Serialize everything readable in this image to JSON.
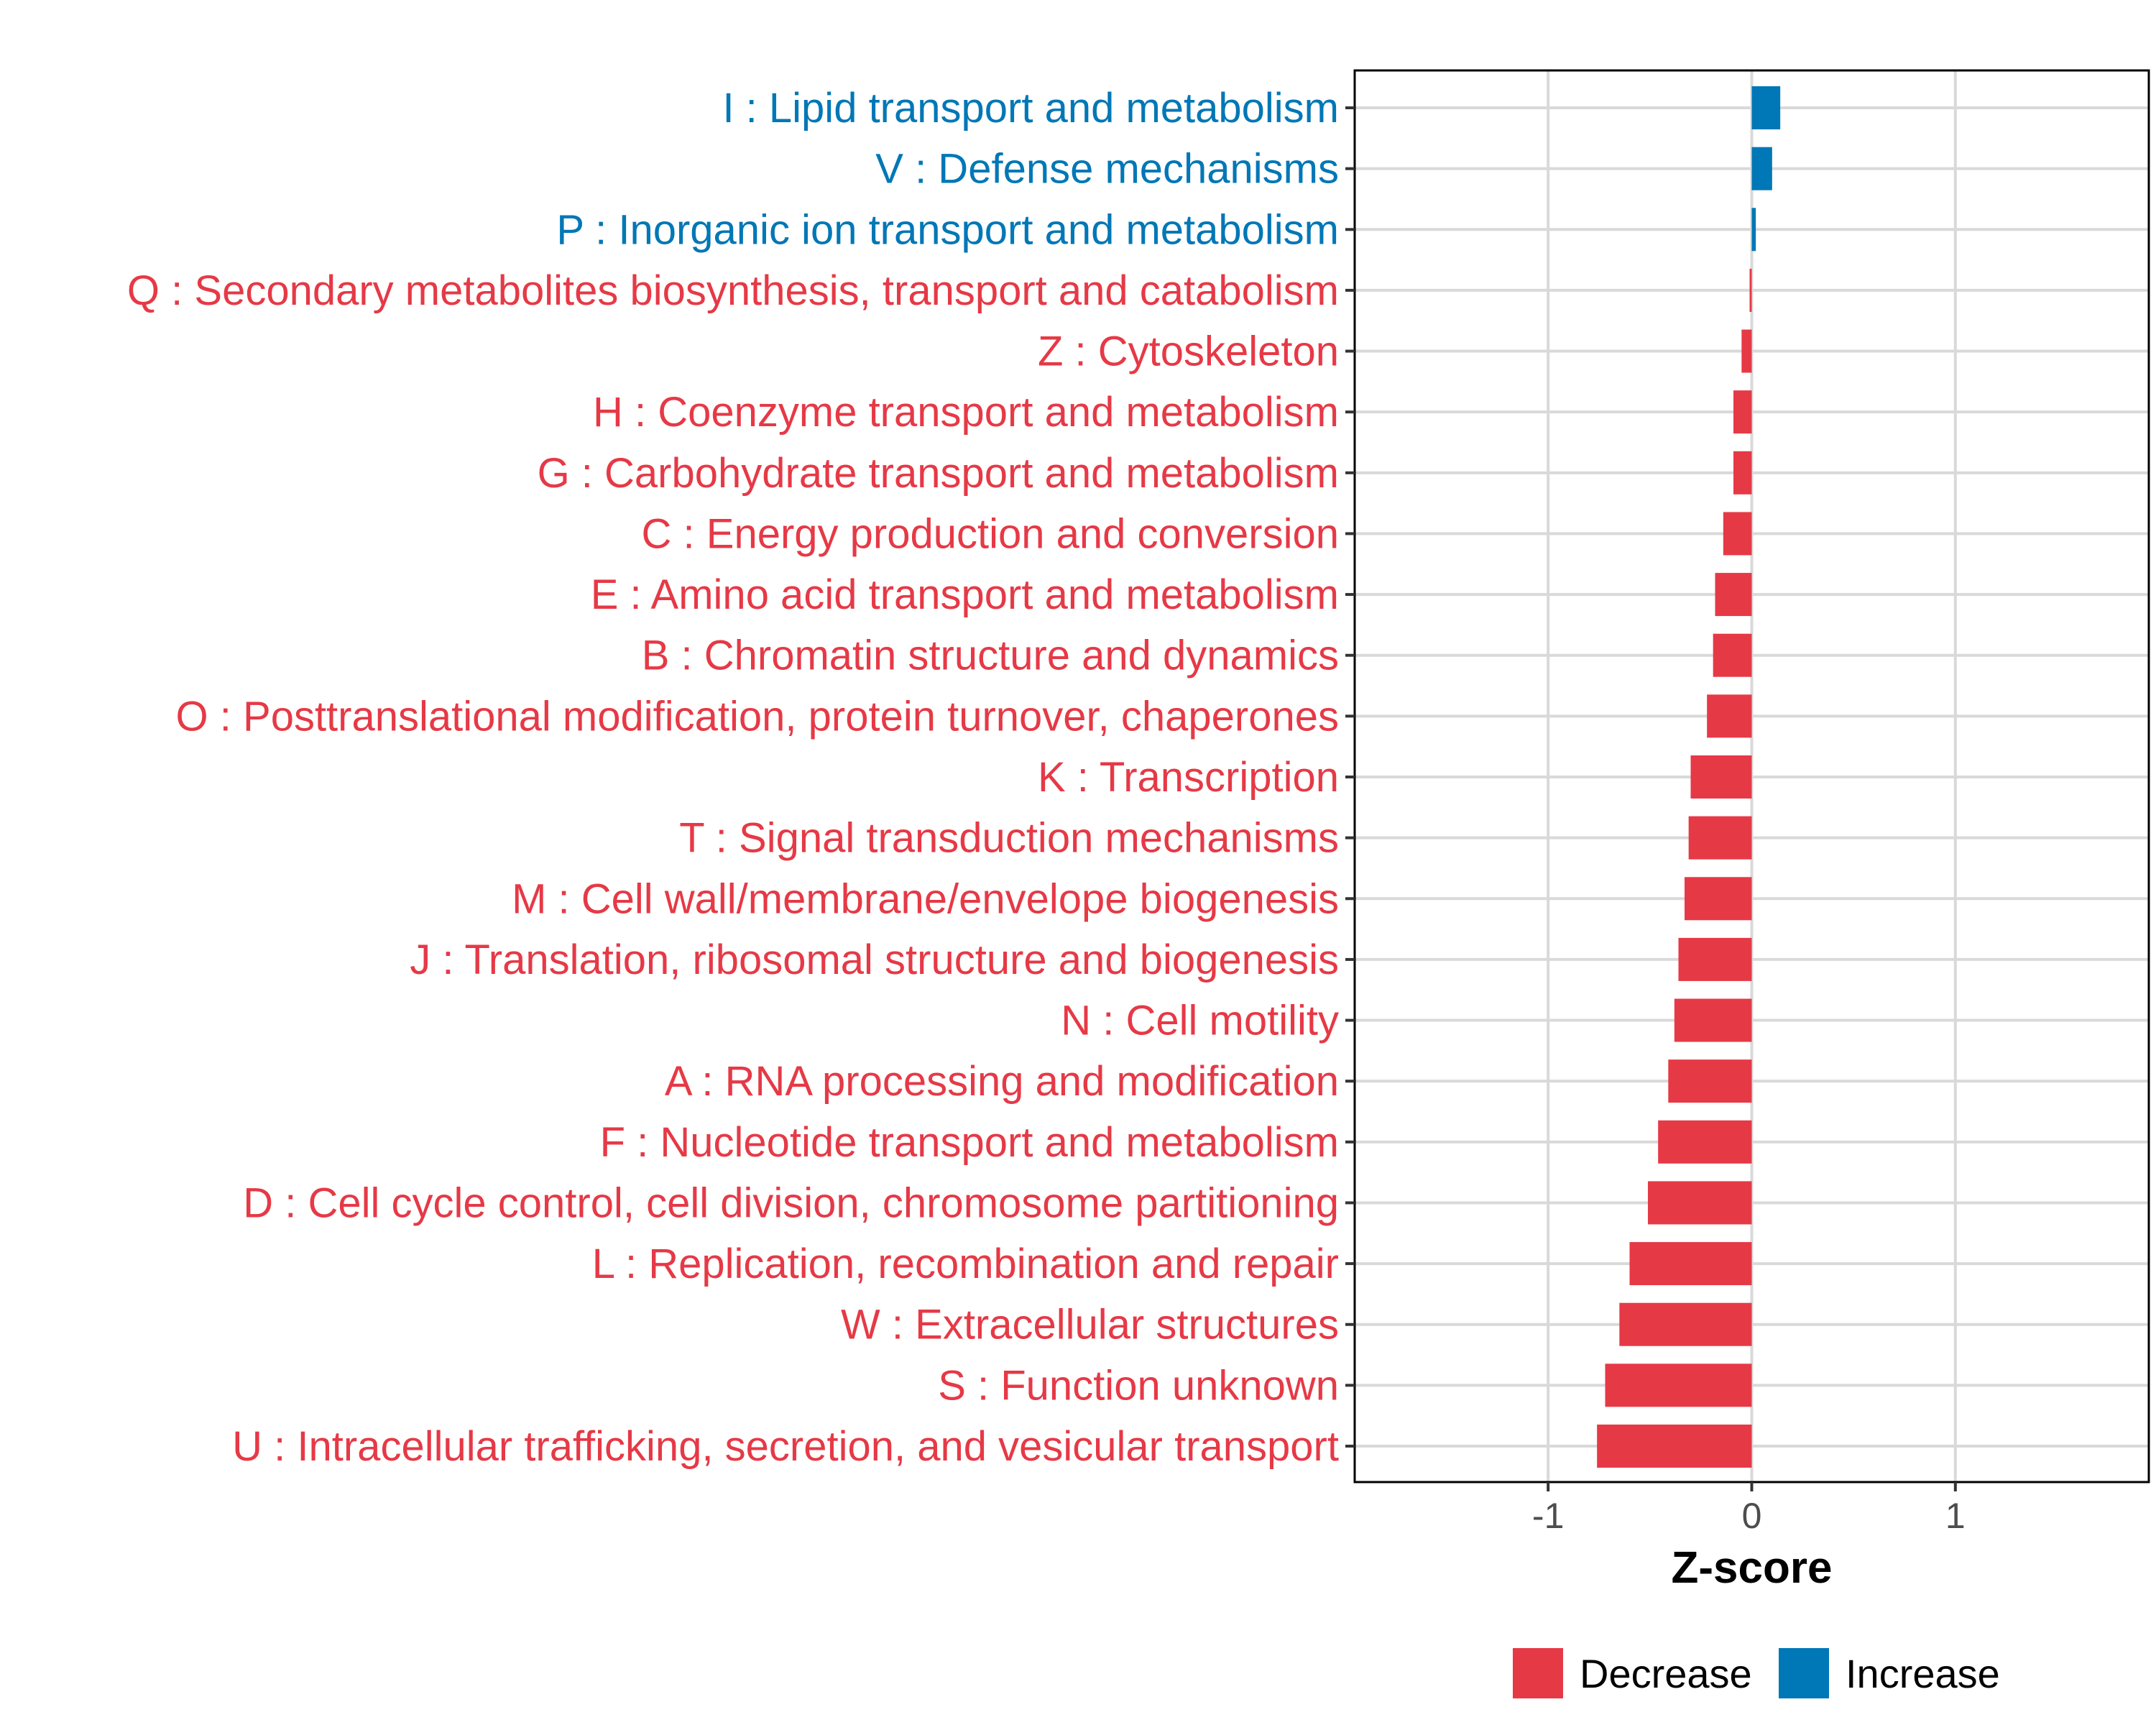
{
  "chart_data": {
    "type": "bar",
    "orientation": "horizontal",
    "title": "",
    "xlabel": "Z-score",
    "ylabel": "",
    "xlim": [
      -1.95,
      1.95
    ],
    "xticks": [
      -1,
      0,
      1
    ],
    "xtick_labels": [
      "-1",
      "0",
      "1"
    ],
    "grid": true,
    "legend_position": "bottom",
    "colors": {
      "Decrease": "#E63946",
      "Increase": "#0077B6",
      "grid": "#d9d9d9"
    },
    "legend": [
      {
        "name": "Decrease",
        "color": "#E63946"
      },
      {
        "name": "Increase",
        "color": "#0077B6"
      }
    ],
    "categories": [
      "I : Lipid transport and metabolism",
      "V : Defense mechanisms",
      "P : Inorganic ion transport and metabolism",
      "Q : Secondary metabolites biosynthesis, transport and catabolism",
      "Z : Cytoskeleton",
      "H : Coenzyme transport and metabolism",
      "G : Carbohydrate transport and metabolism",
      "C : Energy production and conversion",
      "E : Amino acid transport and metabolism",
      "B : Chromatin structure and dynamics",
      "O : Posttranslational modification, protein turnover, chaperones",
      "K : Transcription",
      "T : Signal transduction mechanisms",
      "M : Cell wall/membrane/envelope biogenesis",
      "J : Translation, ribosomal structure and biogenesis",
      "N : Cell motility",
      "A : RNA processing and modification",
      "F : Nucleotide transport and metabolism",
      "D : Cell cycle control, cell division, chromosome partitioning",
      "L : Replication, recombination and repair",
      "W : Extracellular structures",
      "S : Function unknown",
      "U : Intracellular trafficking, secretion, and vesicular transport"
    ],
    "values": [
      0.14,
      0.1,
      0.02,
      -0.01,
      -0.05,
      -0.09,
      -0.09,
      -0.14,
      -0.18,
      -0.19,
      -0.22,
      -0.3,
      -0.31,
      -0.33,
      -0.36,
      -0.38,
      -0.41,
      -0.46,
      -0.51,
      -0.6,
      -0.65,
      -0.72,
      -0.76
    ],
    "groups": [
      "Increase",
      "Increase",
      "Increase",
      "Decrease",
      "Decrease",
      "Decrease",
      "Decrease",
      "Decrease",
      "Decrease",
      "Decrease",
      "Decrease",
      "Decrease",
      "Decrease",
      "Decrease",
      "Decrease",
      "Decrease",
      "Decrease",
      "Decrease",
      "Decrease",
      "Decrease",
      "Decrease",
      "Decrease",
      "Decrease"
    ]
  }
}
